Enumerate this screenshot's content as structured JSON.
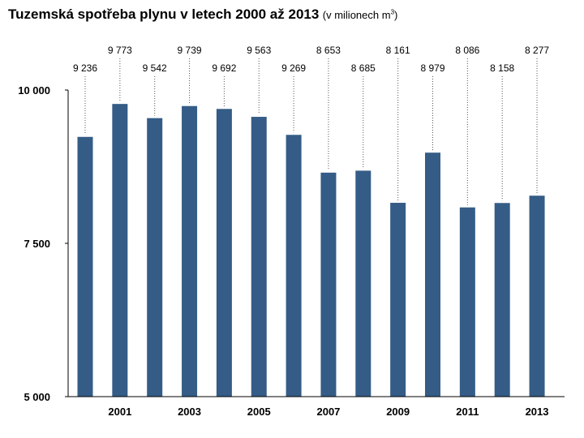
{
  "header": {
    "title_main": "Tuzemská spotřeba plynu v letech 2000 až 2013",
    "title_unit": "(v milionech m",
    "title_unit_sup": "3",
    "title_unit_close": ")"
  },
  "colors": {
    "bar": "#345c86",
    "axis": "#000000",
    "leader": "#555555"
  },
  "chart_data": {
    "type": "bar",
    "title": "Tuzemská spotřeba plynu v letech 2000 až 2013 (v milionech m3)",
    "categories": [
      "2000",
      "2001",
      "2002",
      "2003",
      "2004",
      "2005",
      "2006",
      "2007",
      "2008",
      "2009",
      "2010",
      "2011",
      "2012",
      "2013"
    ],
    "values": [
      9236,
      9773,
      9542,
      9739,
      9692,
      9563,
      9269,
      8653,
      8685,
      8161,
      8979,
      8086,
      8158,
      8277
    ],
    "value_labels": [
      "9 236",
      "9 773",
      "9 542",
      "9 739",
      "9 692",
      "9 563",
      "9 269",
      "8 653",
      "8 685",
      "8 161",
      "8 979",
      "8 086",
      "8 158",
      "8 277"
    ],
    "x_tick_labels": [
      "",
      "2001",
      "",
      "2003",
      "",
      "2005",
      "",
      "2007",
      "",
      "2009",
      "",
      "2011",
      "",
      "2013"
    ],
    "y_ticks": [
      5000,
      7500,
      10000
    ],
    "y_tick_labels": [
      "5 000",
      "7 500",
      "10 000"
    ],
    "ylim": [
      5000,
      10000
    ],
    "xlabel": "",
    "ylabel": "",
    "grid": false,
    "legend": "none"
  }
}
